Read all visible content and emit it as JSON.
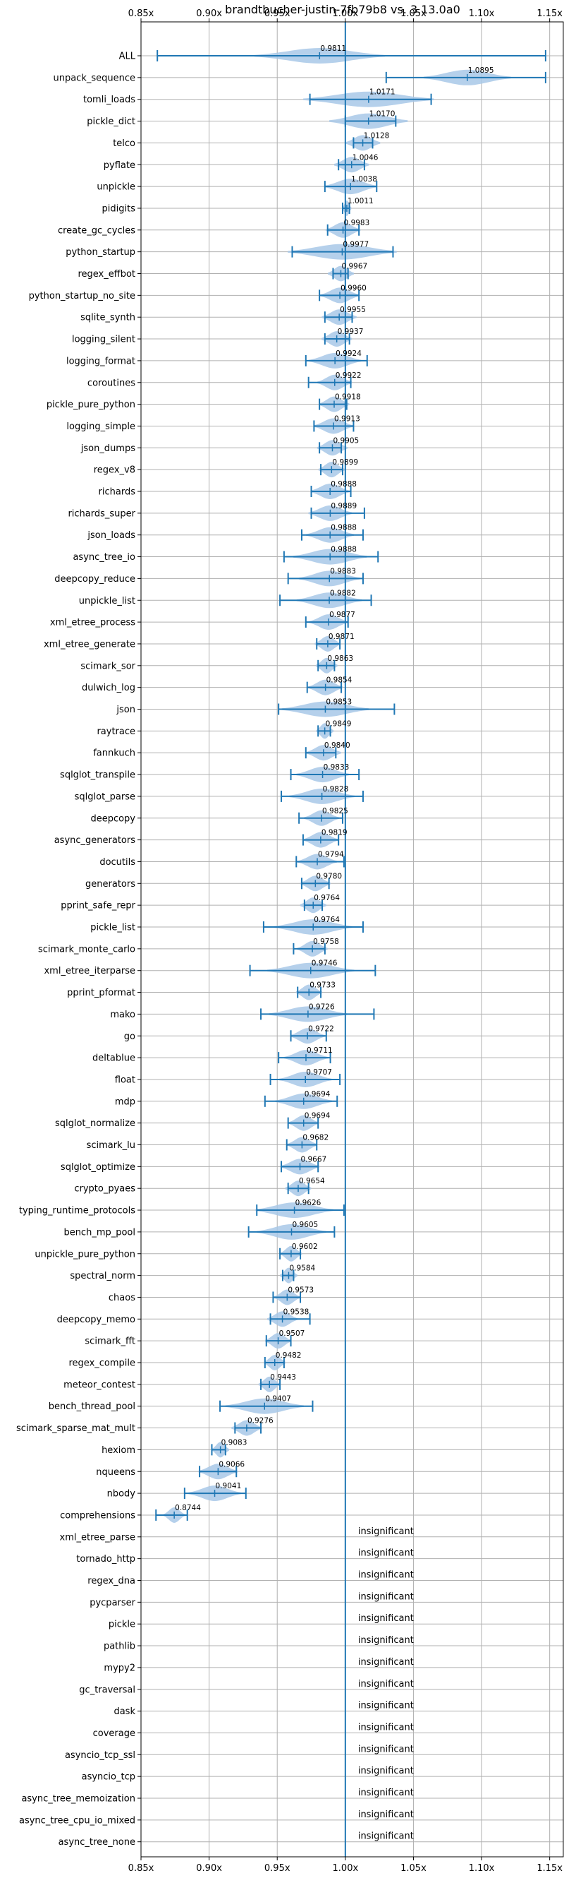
{
  "chart_data": {
    "type": "violin",
    "title": "brandtbucher-justin-7fb79b8 vs. 3.13.0a0",
    "xlim": [
      0.85,
      1.16
    ],
    "xticks": [
      0.85,
      0.9,
      0.95,
      1.0,
      1.05,
      1.1,
      1.15
    ],
    "xtick_labels": [
      "0.85x",
      "0.90x",
      "0.95x",
      "1.00x",
      "1.05x",
      "1.10x",
      "1.15x"
    ],
    "reference_line": 1.0,
    "grid": true,
    "colors": {
      "violin": "#a8c8e8",
      "errorbar": "#1f77b4",
      "refline": "#1f77b4",
      "grid": "#b0b0b0"
    },
    "significant": [
      {
        "name": "ALL",
        "value": 0.9811,
        "label": "0.9811",
        "low": 0.862,
        "high": 1.147,
        "spread": 0.03
      },
      {
        "name": "unpack_sequence",
        "value": 1.0895,
        "label": "1.0895",
        "low": 1.03,
        "high": 1.147,
        "spread": 0.02
      },
      {
        "name": "tomli_loads",
        "value": 1.0171,
        "label": "1.0171",
        "low": 0.974,
        "high": 1.063,
        "spread": 0.03
      },
      {
        "name": "pickle_dict",
        "value": 1.017,
        "label": "1.0170",
        "low": 1.0,
        "high": 1.037,
        "spread": 0.018
      },
      {
        "name": "telco",
        "value": 1.0128,
        "label": "1.0128",
        "low": 1.006,
        "high": 1.02,
        "spread": 0.008
      },
      {
        "name": "pyflate",
        "value": 1.0046,
        "label": "1.0046",
        "low": 0.995,
        "high": 1.014,
        "spread": 0.008
      },
      {
        "name": "unpickle",
        "value": 1.0038,
        "label": "1.0038",
        "low": 0.985,
        "high": 1.023,
        "spread": 0.012
      },
      {
        "name": "pidigits",
        "value": 1.0011,
        "label": "1.0011",
        "low": 0.998,
        "high": 1.003,
        "spread": 0.002
      },
      {
        "name": "create_gc_cycles",
        "value": 0.9983,
        "label": "0.9983",
        "low": 0.987,
        "high": 1.01,
        "spread": 0.008
      },
      {
        "name": "python_startup",
        "value": 0.9977,
        "label": "0.9977",
        "low": 0.961,
        "high": 1.035,
        "spread": 0.025
      },
      {
        "name": "regex_effbot",
        "value": 0.9967,
        "label": "0.9967",
        "low": 0.991,
        "high": 1.002,
        "spread": 0.006
      },
      {
        "name": "python_startup_no_site",
        "value": 0.996,
        "label": "0.9960",
        "low": 0.981,
        "high": 1.01,
        "spread": 0.009
      },
      {
        "name": "sqlite_synth",
        "value": 0.9955,
        "label": "0.9955",
        "low": 0.985,
        "high": 1.005,
        "spread": 0.008
      },
      {
        "name": "logging_silent",
        "value": 0.9937,
        "label": "0.9937",
        "low": 0.985,
        "high": 1.003,
        "spread": 0.007
      },
      {
        "name": "logging_format",
        "value": 0.9924,
        "label": "0.9924",
        "low": 0.971,
        "high": 1.016,
        "spread": 0.012
      },
      {
        "name": "coroutines",
        "value": 0.9922,
        "label": "0.9922",
        "low": 0.973,
        "high": 1.004,
        "spread": 0.008
      },
      {
        "name": "pickle_pure_python",
        "value": 0.9918,
        "label": "0.9918",
        "low": 0.981,
        "high": 1.001,
        "spread": 0.007
      },
      {
        "name": "logging_simple",
        "value": 0.9913,
        "label": "0.9913",
        "low": 0.977,
        "high": 1.006,
        "spread": 0.009
      },
      {
        "name": "json_dumps",
        "value": 0.9905,
        "label": "0.9905",
        "low": 0.981,
        "high": 0.997,
        "spread": 0.007
      },
      {
        "name": "regex_v8",
        "value": 0.9899,
        "label": "0.9899",
        "low": 0.982,
        "high": 0.998,
        "spread": 0.006
      },
      {
        "name": "richards",
        "value": 0.9888,
        "label": "0.9888",
        "low": 0.975,
        "high": 1.004,
        "spread": 0.009
      },
      {
        "name": "richards_super",
        "value": 0.9889,
        "label": "0.9889",
        "low": 0.975,
        "high": 1.014,
        "spread": 0.01
      },
      {
        "name": "json_loads",
        "value": 0.9888,
        "label": "0.9888",
        "low": 0.968,
        "high": 1.013,
        "spread": 0.011
      },
      {
        "name": "async_tree_io",
        "value": 0.9888,
        "label": "0.9888",
        "low": 0.955,
        "high": 1.024,
        "spread": 0.017
      },
      {
        "name": "deepcopy_reduce",
        "value": 0.9883,
        "label": "0.9883",
        "low": 0.958,
        "high": 1.013,
        "spread": 0.014
      },
      {
        "name": "unpickle_list",
        "value": 0.9882,
        "label": "0.9882",
        "low": 0.952,
        "high": 1.019,
        "spread": 0.015
      },
      {
        "name": "xml_etree_process",
        "value": 0.9877,
        "label": "0.9877",
        "low": 0.971,
        "high": 1.002,
        "spread": 0.009
      },
      {
        "name": "xml_etree_generate",
        "value": 0.9871,
        "label": "0.9871",
        "low": 0.979,
        "high": 0.996,
        "spread": 0.006
      },
      {
        "name": "scimark_sor",
        "value": 0.9863,
        "label": "0.9863",
        "low": 0.98,
        "high": 0.992,
        "spread": 0.005
      },
      {
        "name": "dulwich_log",
        "value": 0.9854,
        "label": "0.9854",
        "low": 0.972,
        "high": 0.997,
        "spread": 0.008
      },
      {
        "name": "json",
        "value": 0.9853,
        "label": "0.9853",
        "low": 0.951,
        "high": 1.036,
        "spread": 0.02
      },
      {
        "name": "raytrace",
        "value": 0.9849,
        "label": "0.9849",
        "low": 0.98,
        "high": 0.989,
        "spread": 0.004
      },
      {
        "name": "fannkuch",
        "value": 0.984,
        "label": "0.9840",
        "low": 0.971,
        "high": 0.993,
        "spread": 0.008
      },
      {
        "name": "sqlglot_transpile",
        "value": 0.9833,
        "label": "0.9833",
        "low": 0.96,
        "high": 1.01,
        "spread": 0.012
      },
      {
        "name": "sqlglot_parse",
        "value": 0.9828,
        "label": "0.9828",
        "low": 0.953,
        "high": 1.013,
        "spread": 0.015
      },
      {
        "name": "deepcopy",
        "value": 0.9825,
        "label": "0.9825",
        "low": 0.966,
        "high": 0.998,
        "spread": 0.008
      },
      {
        "name": "async_generators",
        "value": 0.9819,
        "label": "0.9819",
        "low": 0.969,
        "high": 0.995,
        "spread": 0.008
      },
      {
        "name": "docutils",
        "value": 0.9794,
        "label": "0.9794",
        "low": 0.964,
        "high": 0.999,
        "spread": 0.009
      },
      {
        "name": "generators",
        "value": 0.978,
        "label": "0.9780",
        "low": 0.968,
        "high": 0.988,
        "spread": 0.007
      },
      {
        "name": "pprint_safe_repr",
        "value": 0.9764,
        "label": "0.9764",
        "low": 0.97,
        "high": 0.983,
        "spread": 0.006
      },
      {
        "name": "pickle_list",
        "value": 0.9764,
        "label": "0.9764",
        "low": 0.94,
        "high": 1.013,
        "spread": 0.018
      },
      {
        "name": "scimark_monte_carlo",
        "value": 0.9758,
        "label": "0.9758",
        "low": 0.962,
        "high": 0.985,
        "spread": 0.007
      },
      {
        "name": "xml_etree_iterparse",
        "value": 0.9746,
        "label": "0.9746",
        "low": 0.93,
        "high": 1.022,
        "spread": 0.02
      },
      {
        "name": "pprint_pformat",
        "value": 0.9733,
        "label": "0.9733",
        "low": 0.965,
        "high": 0.982,
        "spread": 0.006
      },
      {
        "name": "mako",
        "value": 0.9726,
        "label": "0.9726",
        "low": 0.938,
        "high": 1.021,
        "spread": 0.018
      },
      {
        "name": "go",
        "value": 0.9722,
        "label": "0.9722",
        "low": 0.96,
        "high": 0.986,
        "spread": 0.008
      },
      {
        "name": "deltablue",
        "value": 0.9711,
        "label": "0.9711",
        "low": 0.951,
        "high": 0.989,
        "spread": 0.01
      },
      {
        "name": "float",
        "value": 0.9707,
        "label": "0.9707",
        "low": 0.945,
        "high": 0.996,
        "spread": 0.012
      },
      {
        "name": "mdp",
        "value": 0.9694,
        "label": "0.9694",
        "low": 0.941,
        "high": 0.994,
        "spread": 0.013
      },
      {
        "name": "sqlglot_normalize",
        "value": 0.9694,
        "label": "0.9694",
        "low": 0.958,
        "high": 0.98,
        "spread": 0.007
      },
      {
        "name": "scimark_lu",
        "value": 0.9682,
        "label": "0.9682",
        "low": 0.957,
        "high": 0.979,
        "spread": 0.007
      },
      {
        "name": "sqlglot_optimize",
        "value": 0.9667,
        "label": "0.9667",
        "low": 0.953,
        "high": 0.98,
        "spread": 0.009
      },
      {
        "name": "crypto_pyaes",
        "value": 0.9654,
        "label": "0.9654",
        "low": 0.958,
        "high": 0.973,
        "spread": 0.006
      },
      {
        "name": "typing_runtime_protocols",
        "value": 0.9626,
        "label": "0.9626",
        "low": 0.935,
        "high": 0.999,
        "spread": 0.018
      },
      {
        "name": "bench_mp_pool",
        "value": 0.9605,
        "label": "0.9605",
        "low": 0.929,
        "high": 0.992,
        "spread": 0.016
      },
      {
        "name": "unpickle_pure_python",
        "value": 0.9602,
        "label": "0.9602",
        "low": 0.952,
        "high": 0.967,
        "spread": 0.005
      },
      {
        "name": "spectral_norm",
        "value": 0.9584,
        "label": "0.9584",
        "low": 0.954,
        "high": 0.962,
        "spread": 0.004
      },
      {
        "name": "chaos",
        "value": 0.9573,
        "label": "0.9573",
        "low": 0.947,
        "high": 0.967,
        "spread": 0.006
      },
      {
        "name": "deepcopy_memo",
        "value": 0.9538,
        "label": "0.9538",
        "low": 0.945,
        "high": 0.974,
        "spread": 0.007
      },
      {
        "name": "scimark_fft",
        "value": 0.9507,
        "label": "0.9507",
        "low": 0.942,
        "high": 0.96,
        "spread": 0.006
      },
      {
        "name": "regex_compile",
        "value": 0.9482,
        "label": "0.9482",
        "low": 0.941,
        "high": 0.955,
        "spread": 0.005
      },
      {
        "name": "meteor_contest",
        "value": 0.9443,
        "label": "0.9443",
        "low": 0.938,
        "high": 0.952,
        "spread": 0.005
      },
      {
        "name": "bench_thread_pool",
        "value": 0.9407,
        "label": "0.9407",
        "low": 0.908,
        "high": 0.976,
        "spread": 0.018
      },
      {
        "name": "scimark_sparse_mat_mult",
        "value": 0.9276,
        "label": "0.9276",
        "low": 0.919,
        "high": 0.938,
        "spread": 0.007
      },
      {
        "name": "hexiom",
        "value": 0.9083,
        "label": "0.9083",
        "low": 0.902,
        "high": 0.912,
        "spread": 0.004
      },
      {
        "name": "nqueens",
        "value": 0.9066,
        "label": "0.9066",
        "low": 0.893,
        "high": 0.92,
        "spread": 0.009
      },
      {
        "name": "nbody",
        "value": 0.9041,
        "label": "0.9041",
        "low": 0.882,
        "high": 0.927,
        "spread": 0.012
      },
      {
        "name": "comprehensions",
        "value": 0.8744,
        "label": "0.8744",
        "low": 0.861,
        "high": 0.884,
        "spread": 0.005
      }
    ],
    "insignificant_label": "insignificant",
    "insignificant": [
      "xml_etree_parse",
      "tornado_http",
      "regex_dna",
      "pycparser",
      "pickle",
      "pathlib",
      "mypy2",
      "gc_traversal",
      "dask",
      "coverage",
      "asyncio_tcp_ssl",
      "asyncio_tcp",
      "async_tree_memoization",
      "async_tree_cpu_io_mixed",
      "async_tree_none"
    ]
  }
}
